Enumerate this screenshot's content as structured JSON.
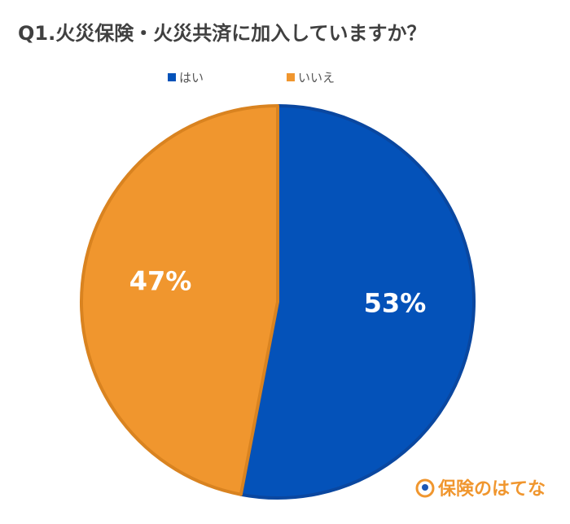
{
  "chart_data": {
    "type": "pie",
    "title": "Q1.火災保険・火災共済に加入していますか？",
    "categories": [
      "はい",
      "いいえ"
    ],
    "values": [
      53,
      47
    ],
    "value_labels": [
      "53%",
      "47%"
    ],
    "colors": [
      "#0452b9",
      "#f0962e"
    ],
    "legend": "top"
  },
  "watermark": "保険のはてな"
}
